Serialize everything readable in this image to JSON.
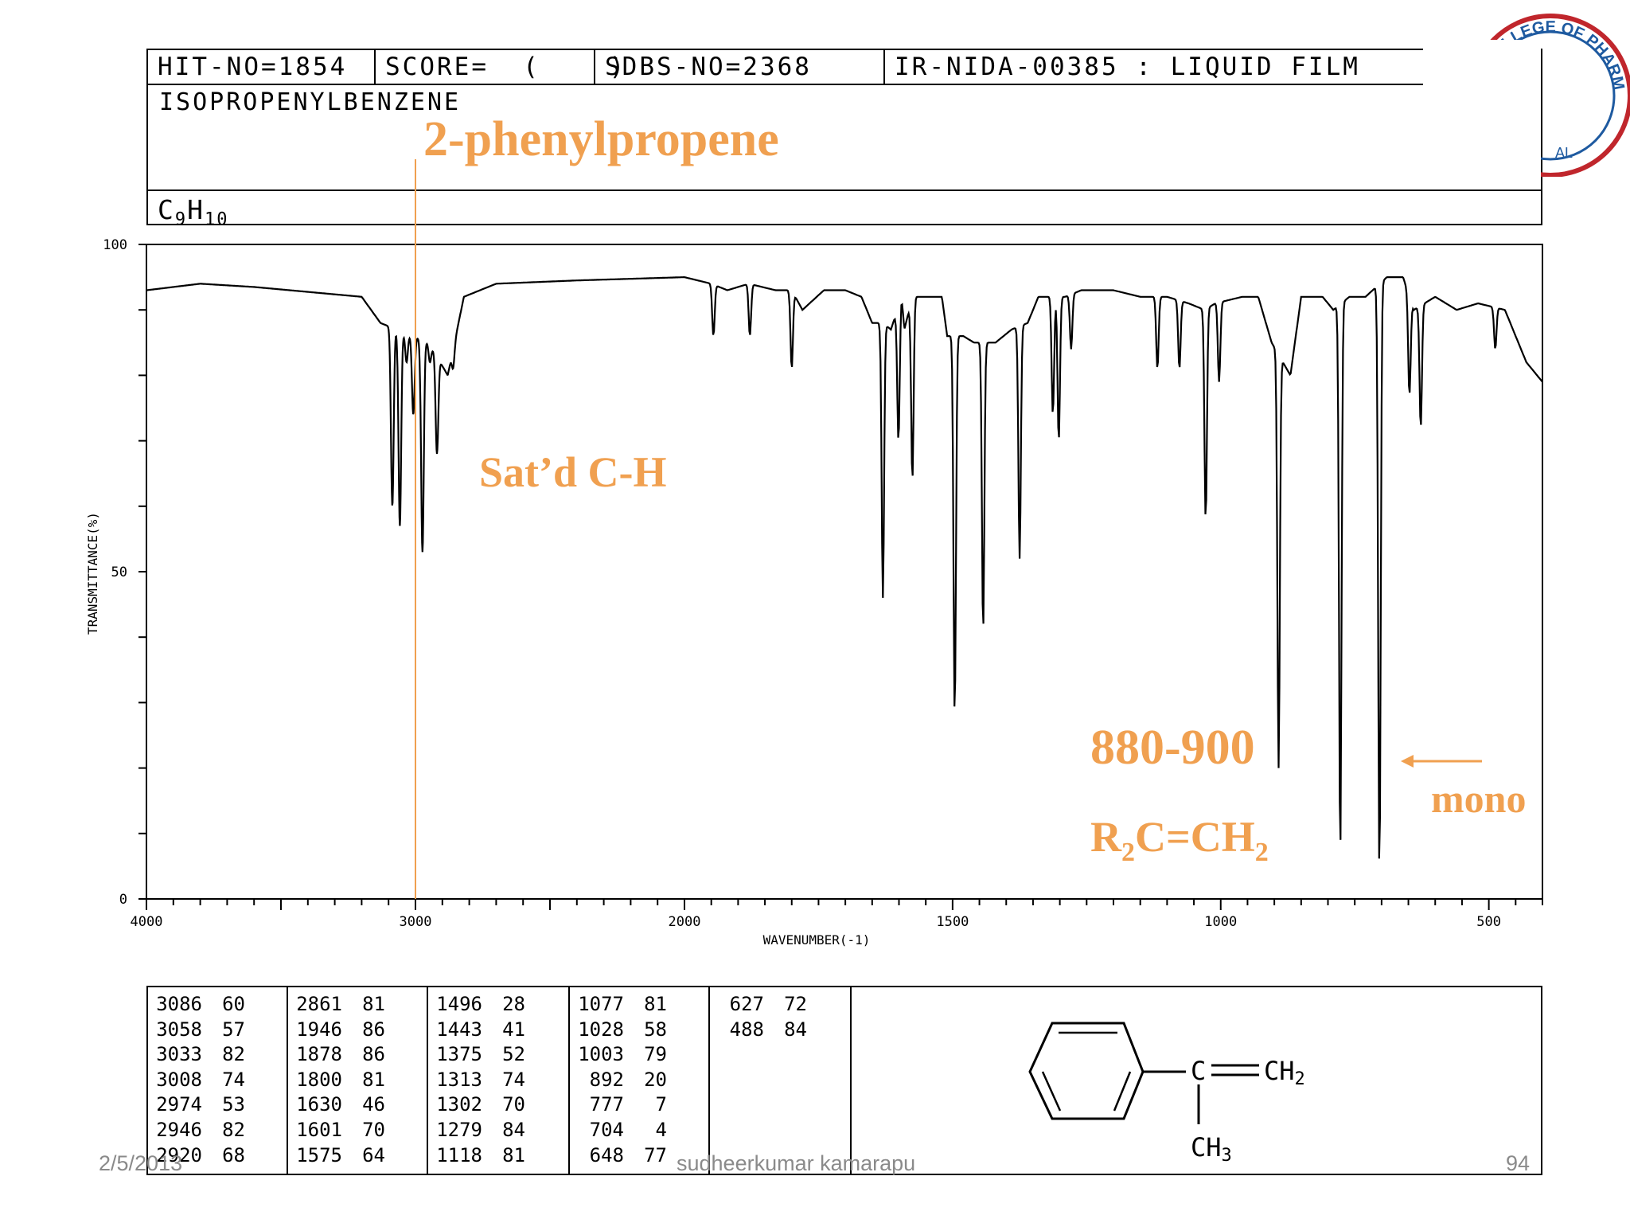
{
  "header": {
    "hit_no": "HIT-NO=1854",
    "score": "SCORE=  (    )",
    "sdbs_no": "SDBS-NO=2368",
    "method": "IR-NIDA-00385 : LIQUID FILM",
    "compound_name": "ISOPROPENYLBENZENE",
    "formula_main": "C",
    "formula_sub1": "9",
    "formula_h": "H",
    "formula_sub2": "10"
  },
  "title": "2-phenylpropene",
  "annotations": {
    "satd_ch": "Sat’d C-H",
    "range": "880-900",
    "r2c": "R",
    "r2c_sub1": "2",
    "r2c_mid": "C=CH",
    "r2c_sub2": "2",
    "mono": "mono"
  },
  "logo": {
    "text": "NI COLLEGE OF PHARMACY",
    "fragment": "AL"
  },
  "structure": {
    "ch2": "CH",
    "ch2_sub": "2",
    "ch3": "CH",
    "ch3_sub": "3",
    "c": "C"
  },
  "footer": {
    "date": "2/5/2013",
    "author": "sudheerkumar kamarapu",
    "page": "94"
  },
  "colors": {
    "accent": "#f0a050",
    "line": "#000000",
    "footer": "#8a8a8a"
  },
  "peak_table": [
    [
      [
        "3086",
        "60"
      ],
      [
        "3058",
        "57"
      ],
      [
        "3033",
        "82"
      ],
      [
        "3008",
        "74"
      ],
      [
        "2974",
        "53"
      ],
      [
        "2946",
        "82"
      ],
      [
        "2920",
        "68"
      ]
    ],
    [
      [
        "2861",
        "81"
      ],
      [
        "1946",
        "86"
      ],
      [
        "1878",
        "86"
      ],
      [
        "1800",
        "81"
      ],
      [
        "1630",
        "46"
      ],
      [
        "1601",
        "70"
      ],
      [
        "1575",
        "64"
      ]
    ],
    [
      [
        "1496",
        "28"
      ],
      [
        "1443",
        "41"
      ],
      [
        "1375",
        "52"
      ],
      [
        "1313",
        "74"
      ],
      [
        "1302",
        "70"
      ],
      [
        "1279",
        "84"
      ],
      [
        "1118",
        "81"
      ]
    ],
    [
      [
        "1077",
        "81"
      ],
      [
        "1028",
        "58"
      ],
      [
        "1003",
        "79"
      ],
      [
        "892",
        "20"
      ],
      [
        "777",
        "7"
      ],
      [
        "704",
        "4"
      ],
      [
        "648",
        "77"
      ]
    ],
    [
      [
        "627",
        "72"
      ],
      [
        "488",
        "84"
      ]
    ]
  ],
  "chart_data": {
    "type": "line",
    "xlabel": "WAVENUMBER(-1)",
    "ylabel": "TRANSMITTANCE(%)",
    "xlim": [
      4000,
      400
    ],
    "ylim": [
      0,
      100
    ],
    "x_ticks": [
      "4000",
      "3000",
      "2000",
      "1500",
      "1000",
      "500"
    ],
    "y_ticks": [
      "100",
      "50",
      "0"
    ],
    "marker_line_x": 3000,
    "baseline": [
      [
        4000,
        93
      ],
      [
        3800,
        94
      ],
      [
        3600,
        93.5
      ],
      [
        3200,
        92
      ],
      [
        3130,
        88
      ],
      [
        2950,
        85
      ],
      [
        2880,
        80
      ],
      [
        2820,
        92
      ],
      [
        2700,
        94
      ],
      [
        2400,
        94.5
      ],
      [
        2000,
        95
      ],
      [
        1950,
        94
      ],
      [
        1920,
        93
      ],
      [
        1880,
        94
      ],
      [
        1830,
        93
      ],
      [
        1800,
        93
      ],
      [
        1780,
        90
      ],
      [
        1740,
        93
      ],
      [
        1700,
        93
      ],
      [
        1670,
        92
      ],
      [
        1650,
        88
      ],
      [
        1630,
        88
      ],
      [
        1615,
        87
      ],
      [
        1595,
        92
      ],
      [
        1590,
        87
      ],
      [
        1575,
        92
      ],
      [
        1520,
        92
      ],
      [
        1510,
        86
      ],
      [
        1480,
        86
      ],
      [
        1460,
        85
      ],
      [
        1420,
        85
      ],
      [
        1390,
        87
      ],
      [
        1360,
        88
      ],
      [
        1340,
        92
      ],
      [
        1290,
        92
      ],
      [
        1260,
        93
      ],
      [
        1200,
        93
      ],
      [
        1150,
        92
      ],
      [
        1100,
        92
      ],
      [
        1060,
        91
      ],
      [
        1030,
        90
      ],
      [
        1010,
        91
      ],
      [
        960,
        92
      ],
      [
        930,
        92
      ],
      [
        905,
        85
      ],
      [
        870,
        80
      ],
      [
        850,
        92
      ],
      [
        810,
        92
      ],
      [
        790,
        90
      ],
      [
        760,
        92
      ],
      [
        730,
        92
      ],
      [
        690,
        95
      ],
      [
        660,
        95
      ],
      [
        640,
        90
      ],
      [
        600,
        92
      ],
      [
        560,
        90
      ],
      [
        520,
        91
      ],
      [
        470,
        90
      ],
      [
        430,
        82
      ],
      [
        400,
        79
      ]
    ],
    "peaks": [
      [
        "3086",
        60
      ],
      [
        "3058",
        57
      ],
      [
        "3033",
        82
      ],
      [
        "3008",
        74
      ],
      [
        "2974",
        53
      ],
      [
        "2946",
        82
      ],
      [
        "2920",
        68
      ],
      [
        "2861",
        81
      ],
      [
        "1946",
        86
      ],
      [
        "1878",
        86
      ],
      [
        "1800",
        81
      ],
      [
        "1630",
        46
      ],
      [
        "1601",
        70
      ],
      [
        "1575",
        64
      ],
      [
        "1496",
        28
      ],
      [
        "1443",
        41
      ],
      [
        "1375",
        52
      ],
      [
        "1313",
        74
      ],
      [
        "1302",
        70
      ],
      [
        "1279",
        84
      ],
      [
        "1118",
        81
      ],
      [
        "1077",
        81
      ],
      [
        "1028",
        58
      ],
      [
        "1003",
        79
      ],
      [
        "892",
        20
      ],
      [
        "777",
        7
      ],
      [
        "704",
        4
      ],
      [
        "648",
        77
      ],
      [
        "627",
        72
      ],
      [
        "488",
        84
      ]
    ]
  }
}
